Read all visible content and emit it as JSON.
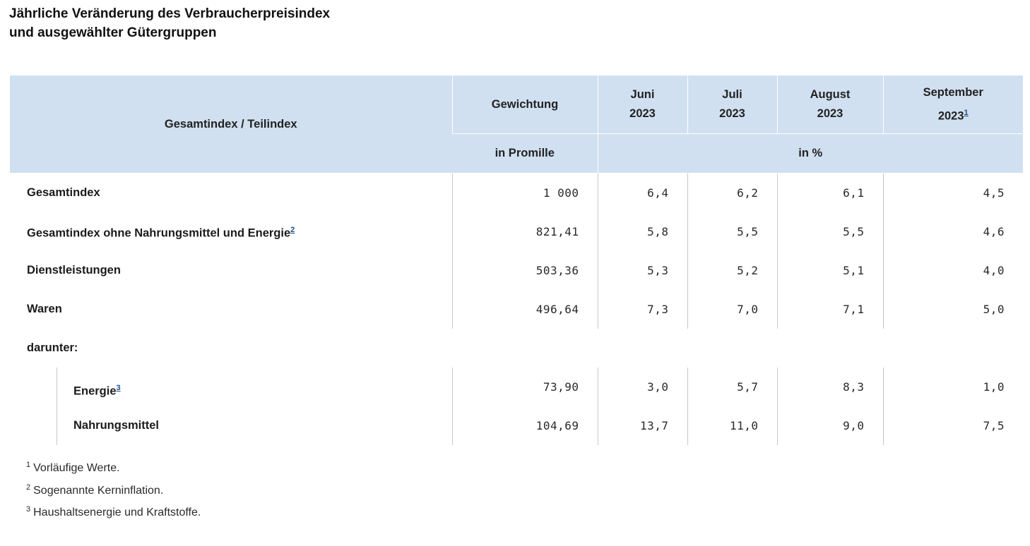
{
  "title": {
    "line1": "Jährliche Veränderung des Verbraucherpreisindex",
    "line2": "und ausgewählter Gütergruppen"
  },
  "header": {
    "index_label": "Gesamtindex / Teilindex",
    "weight_label": "Gewichtung",
    "months": [
      {
        "month": "Juni",
        "year": "2023",
        "footnote": ""
      },
      {
        "month": "Juli",
        "year": "2023",
        "footnote": ""
      },
      {
        "month": "August",
        "year": "2023",
        "footnote": ""
      },
      {
        "month": "September",
        "year": "2023",
        "footnote": "1"
      }
    ],
    "weight_unit": "in Promille",
    "percent_unit": "in %"
  },
  "rows": [
    {
      "label": "Gesamtindex",
      "footnote": "",
      "weight": "1 000",
      "values": [
        "6,4",
        "6,2",
        "6,1",
        "4,5"
      ]
    },
    {
      "label": "Gesamtindex ohne Nahrungsmittel und Energie",
      "footnote": "2",
      "weight": "821,41",
      "values": [
        "5,8",
        "5,5",
        "5,5",
        "4,6"
      ]
    },
    {
      "label": "Dienstleistungen",
      "footnote": "",
      "weight": "503,36",
      "values": [
        "5,3",
        "5,2",
        "5,1",
        "4,0"
      ]
    },
    {
      "label": "Waren",
      "footnote": "",
      "weight": "496,64",
      "values": [
        "7,3",
        "7,0",
        "7,1",
        "5,0"
      ]
    }
  ],
  "section_label": "darunter:",
  "subrows": [
    {
      "label": "Energie",
      "footnote": "3",
      "weight": "73,90",
      "values": [
        "3,0",
        "5,7",
        "8,3",
        "1,0"
      ]
    },
    {
      "label": "Nahrungsmittel",
      "footnote": "",
      "weight": "104,69",
      "values": [
        "13,7",
        "11,0",
        "9,0",
        "7,5"
      ]
    }
  ],
  "footnotes": [
    {
      "num": "1",
      "text": "Vorläufige Werte."
    },
    {
      "num": "2",
      "text": "Sogenannte Kerninflation."
    },
    {
      "num": "3",
      "text": "Haushaltsenergie und Kraftstoffe."
    }
  ]
}
